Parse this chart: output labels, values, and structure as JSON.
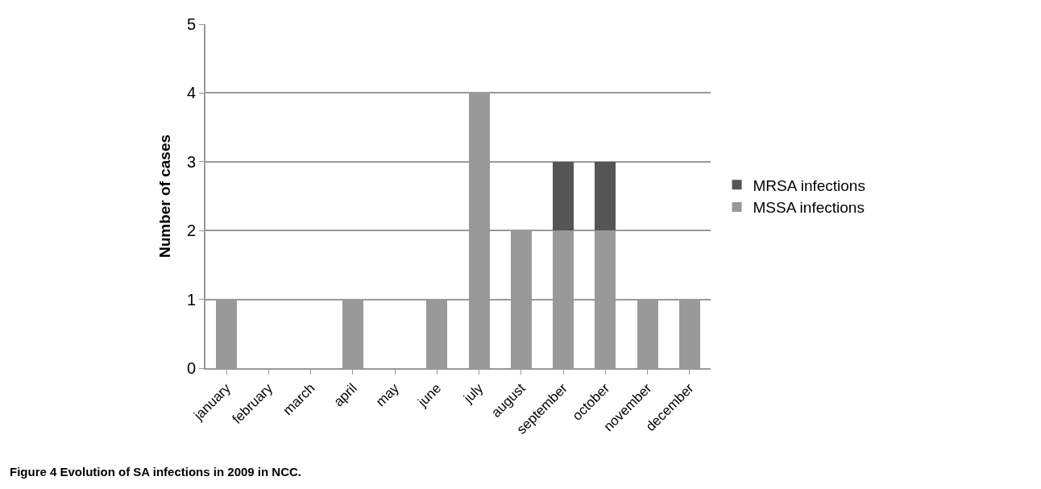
{
  "chart_data": {
    "type": "bar",
    "stacked": true,
    "ylabel": "Number of cases",
    "categories": [
      "january",
      "february",
      "march",
      "april",
      "may",
      "june",
      "july",
      "august",
      "september",
      "october",
      "november",
      "december"
    ],
    "series": [
      {
        "name": "MSSA infections",
        "color": "#999999",
        "values": [
          1,
          0,
          0,
          1,
          0,
          1,
          4,
          2,
          2,
          2,
          1,
          1
        ]
      },
      {
        "name": "MRSA infections",
        "color": "#555555",
        "values": [
          0,
          0,
          0,
          0,
          0,
          0,
          0,
          0,
          1,
          1,
          0,
          0
        ]
      }
    ],
    "ylim": [
      0,
      5
    ],
    "yticks": [
      0,
      1,
      2,
      3,
      4,
      5
    ],
    "grid": "y",
    "legend": "right",
    "annotations": [
      "Figure 4 Evolution of SA infections in 2009 in NCC."
    ]
  }
}
